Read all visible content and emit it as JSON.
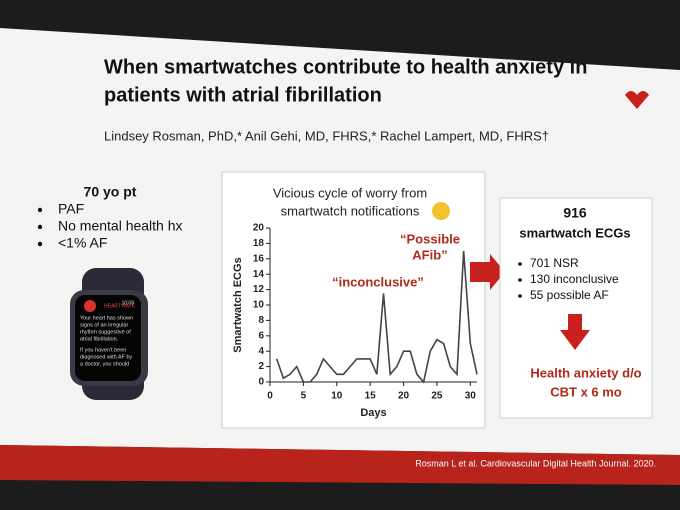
{
  "slide": {
    "title_lines": [
      "When smartwatches contribute to health anxiety in",
      "patients with atrial fibrillation"
    ],
    "authors": "Lindsey Rosman, PhD,* Anil Gehi, MD, FHRS,* Rachel Lampert, MD, FHRS†",
    "patient": {
      "heading": "70 yo pt",
      "bullets": [
        "PAF",
        "No mental health hx",
        "<1% AF"
      ]
    },
    "watch": {
      "time": "10:09",
      "app": "HEART RATE",
      "message": [
        "Your heart has shown",
        "signs of an irregular",
        "rhythm suggestive of",
        "atrial fibrillation."
      ],
      "message2": [
        "If you haven't been",
        "diagnosed with AF by",
        "a doctor, you should"
      ]
    },
    "summary": {
      "count": "916",
      "label": "smartwatch ECGs",
      "bullets": [
        "701 NSR",
        "130 inconclusive",
        "55 possible AF"
      ],
      "outcome": [
        "Health anxiety d/o",
        "CBT x 6 mo"
      ]
    },
    "citation": "Rosman L et al. Cardiovascular Digital Health Journal. 2020."
  },
  "chart_data": {
    "type": "line",
    "title_lines": [
      "Vicious cycle of worry from",
      "smartwatch notifications"
    ],
    "x_label": "Days",
    "y_label": "Smartwatch ECGs",
    "x": [
      1,
      2,
      3,
      4,
      5,
      6,
      7,
      8,
      9,
      10,
      11,
      12,
      13,
      14,
      15,
      16,
      17,
      18,
      19,
      20,
      21,
      22,
      23,
      24,
      25,
      26,
      27,
      28,
      29,
      30,
      31
    ],
    "y": [
      3,
      0.5,
      1,
      2,
      0,
      0,
      1,
      3,
      2,
      1,
      1,
      2,
      3,
      3,
      3,
      1,
      11.5,
      1,
      2,
      4,
      4,
      1,
      0,
      4,
      5.5,
      5,
      2,
      1,
      17,
      5,
      1
    ],
    "color": "#444444",
    "xlim": [
      0,
      31
    ],
    "ylim": [
      0,
      20
    ],
    "xticks": [
      0,
      5,
      10,
      15,
      20,
      25,
      30
    ],
    "yticks": [
      0,
      2,
      4,
      6,
      8,
      10,
      12,
      14,
      16,
      18,
      20
    ],
    "annotations": [
      {
        "lines": [
          "“inconclusive”"
        ],
        "color": "#b02a1a"
      },
      {
        "lines": [
          "“Possible",
          "AFib”"
        ],
        "color": "#b02a1a"
      }
    ]
  }
}
